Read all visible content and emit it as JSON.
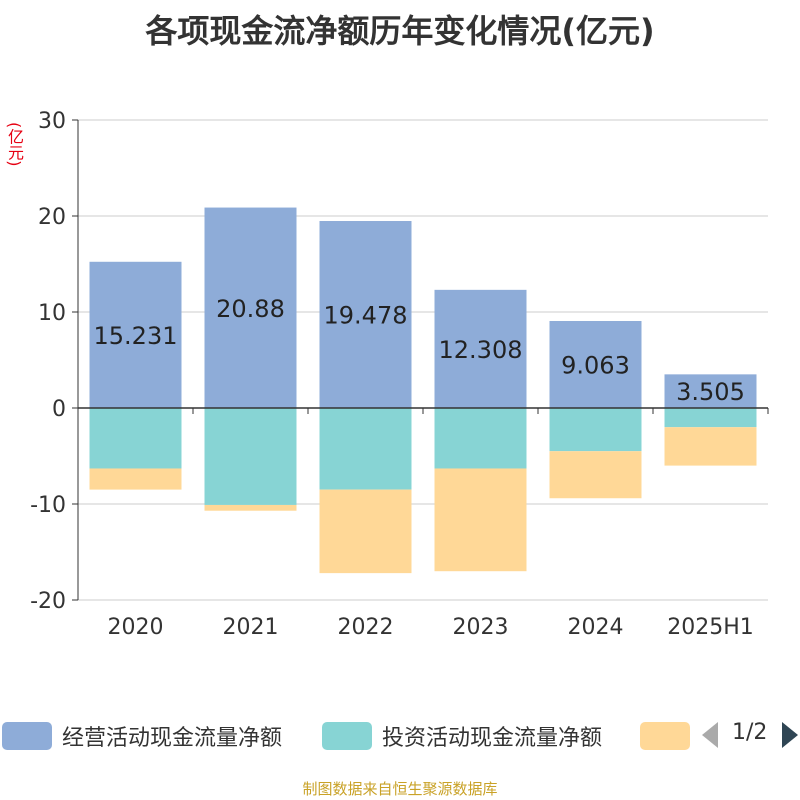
{
  "chart_data": {
    "type": "bar",
    "title": "各项现金流净额历年变化情况(亿元)",
    "ylabel": "(亿元)",
    "ylim": [
      -20,
      30
    ],
    "yticks": [
      30,
      20,
      10,
      0,
      -10,
      -20
    ],
    "categories": [
      "2020",
      "2021",
      "2022",
      "2023",
      "2024",
      "2025H1"
    ],
    "stacked": true,
    "series": [
      {
        "name": "经营活动现金流量净额",
        "color": "#8eacd8",
        "values": [
          15.231,
          20.88,
          19.478,
          12.308,
          9.063,
          3.505
        ],
        "labels": [
          "15.231",
          "20.88",
          "19.478",
          "12.308",
          "9.063",
          "3.505"
        ]
      },
      {
        "name": "投资活动现金流量净额",
        "color": "#87d4d4",
        "values": [
          -6.3,
          -10.1,
          -8.5,
          -6.3,
          -4.5,
          -2.0
        ]
      },
      {
        "name": "",
        "color": "#ffd897",
        "values": [
          -2.2,
          -0.6,
          -8.7,
          -10.7,
          -4.9,
          -4.0
        ]
      }
    ],
    "grid": true,
    "legend": "bottom"
  },
  "legend": {
    "items": [
      "经营活动现金流量净额",
      "投资活动现金流量净额",
      ""
    ],
    "page": "1/2",
    "prev_icon": "triangle-left-icon",
    "next_icon": "triangle-right-icon"
  },
  "footer": "制图数据来自恒生聚源数据库"
}
